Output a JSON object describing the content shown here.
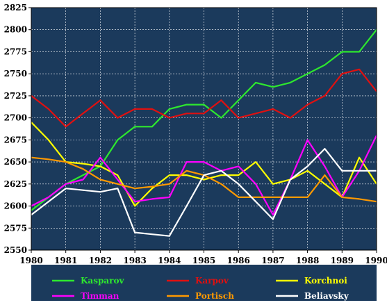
{
  "chart_data": {
    "type": "line",
    "title": "",
    "xlabel": "",
    "ylabel": "",
    "xlim": [
      1980,
      1990
    ],
    "ylim": [
      2550,
      2825
    ],
    "x_ticks": [
      "1980",
      "1981",
      "1982",
      "1983",
      "1984",
      "1985",
      "1986",
      "1987",
      "1988",
      "1989",
      "1990"
    ],
    "y_ticks": [
      "2825",
      "2800",
      "2775",
      "2750",
      "2725",
      "2700",
      "2675",
      "2650",
      "2625",
      "2600",
      "2575",
      "2550"
    ],
    "grid": true,
    "background_color": "#1b3a5c",
    "legend_placement": "bottom",
    "series": [
      {
        "name": "Kasparov",
        "color": "#2ee82e",
        "x": [
          1980,
          1980.5,
          1981,
          1981.5,
          1982,
          1982.5,
          1983,
          1983.5,
          1984,
          1984.5,
          1985,
          1985.5,
          1986,
          1986.5,
          1987,
          1987.5,
          1988,
          1988.5,
          1989,
          1989.5,
          1990
        ],
        "y": [
          2595,
          2610,
          2625,
          2635,
          2645,
          2675,
          2690,
          2690,
          2710,
          2715,
          2715,
          2700,
          2720,
          2740,
          2735,
          2740,
          2750,
          2760,
          2775,
          2775,
          2800
        ]
      },
      {
        "name": "Karpov",
        "color": "#e01010",
        "x": [
          1980,
          1980.5,
          1981,
          1981.5,
          1982,
          1982.5,
          1983,
          1983.5,
          1984,
          1984.5,
          1985,
          1985.5,
          1986,
          1986.5,
          1987,
          1987.5,
          1988,
          1988.5,
          1989,
          1989.5,
          1990
        ],
        "y": [
          2725,
          2710,
          2690,
          2705,
          2720,
          2700,
          2710,
          2710,
          2700,
          2705,
          2705,
          2720,
          2700,
          2705,
          2710,
          2700,
          2715,
          2725,
          2750,
          2755,
          2730
        ]
      },
      {
        "name": "Korchnoi",
        "color": "#ffff00",
        "x": [
          1980,
          1980.5,
          1981,
          1981.5,
          1982,
          1982.5,
          1983,
          1983.5,
          1984,
          1984.5,
          1985,
          1985.5,
          1986,
          1986.5,
          1987,
          1987.5,
          1988,
          1988.5,
          1989,
          1989.5,
          1990
        ],
        "y": [
          2695,
          2675,
          2650,
          2648,
          2645,
          2635,
          2600,
          2620,
          2635,
          2635,
          2630,
          2635,
          2635,
          2650,
          2625,
          2630,
          2640,
          2625,
          2610,
          2655,
          2625
        ]
      },
      {
        "name": "Timman",
        "color": "#ff00ff",
        "x": [
          1980,
          1980.5,
          1981,
          1981.5,
          1982,
          1982.5,
          1983,
          1983.5,
          1984,
          1984.5,
          1985,
          1985.5,
          1986,
          1986.5,
          1987,
          1987.5,
          1988,
          1988.5,
          1989,
          1989.5,
          1990
        ],
        "y": [
          2600,
          2610,
          2625,
          2630,
          2655,
          2630,
          2605,
          2608,
          2610,
          2650,
          2650,
          2640,
          2645,
          2625,
          2590,
          2630,
          2675,
          2645,
          2610,
          2640,
          2680
        ]
      },
      {
        "name": "Portisch",
        "color": "#ff9900",
        "x": [
          1980,
          1980.5,
          1981,
          1981.5,
          1982,
          1982.5,
          1983,
          1983.5,
          1984,
          1984.5,
          1985,
          1985.5,
          1986,
          1986.5,
          1987,
          1987.5,
          1988,
          1988.5,
          1989,
          1989.5,
          1990
        ],
        "y": [
          2655,
          2653,
          2650,
          2642,
          2630,
          2625,
          2620,
          2622,
          2625,
          2640,
          2635,
          2625,
          2610,
          2610,
          2610,
          2610,
          2610,
          2635,
          2610,
          2608,
          2605
        ]
      },
      {
        "name": "Beliavsky",
        "color": "#ffffff",
        "x": [
          1980,
          1980.5,
          1981,
          1981.5,
          1982,
          1982.5,
          1983,
          1983.5,
          1984,
          1984.5,
          1985,
          1985.5,
          1986,
          1986.5,
          1987,
          1987.5,
          1988,
          1988.5,
          1989,
          1989.5,
          1990
        ],
        "y": [
          2590,
          2605,
          2620,
          2618,
          2616,
          2620,
          2570,
          2568,
          2566,
          2600,
          2635,
          2640,
          2625,
          2605,
          2585,
          2630,
          2645,
          2665,
          2640,
          2640,
          2640
        ]
      }
    ]
  }
}
